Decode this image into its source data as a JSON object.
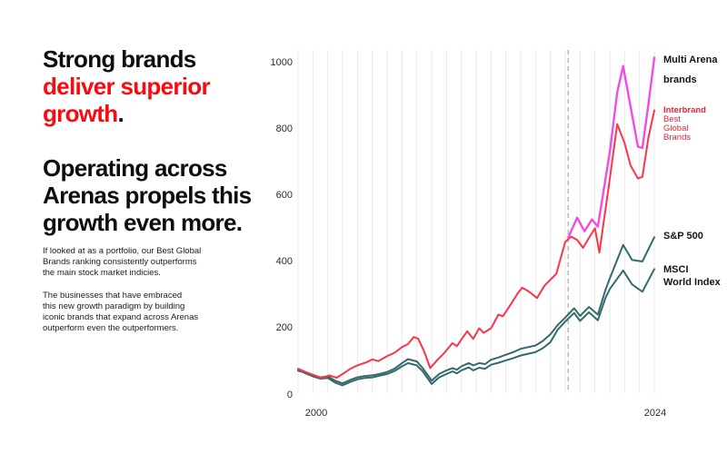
{
  "headline": {
    "line1": "Strong brands",
    "line2": "deliver superior",
    "line3_red": "growth",
    "line3_period": ".",
    "block2": "Operating across\nArenas propels this\ngrowth even more."
  },
  "body": {
    "para1": "If looked at as a portfolio, our Best Global\nBrands ranking consistently outperforms\nthe main stock market indicies.",
    "para2": "The businesses that have embraced\nthis new growth paradigm by building\niconic brands that expand across Arenas\noutperform even the outperformers."
  },
  "colors": {
    "accent_red": "#fa0a0f",
    "line_red": "#fb3448",
    "line_magenta": "#ee4ee2",
    "line_teal": "#34696e",
    "grid": "#e9e9e9",
    "dashed": "#b9b9b9"
  },
  "chart_data": {
    "type": "line",
    "x_axis": {
      "ticks": [
        "2000",
        "2024"
      ],
      "range": [
        2000,
        2024
      ],
      "gridlines": "vertical-yearly"
    },
    "y_axis": {
      "ticks": [
        "0",
        "200",
        "400",
        "600",
        "800",
        "1000"
      ],
      "tick_values": [
        0,
        200,
        400,
        600,
        800,
        1000
      ],
      "range": [
        0,
        1050
      ]
    },
    "dashed_marker_year": 2018.2,
    "legend": {
      "multi_arena": "Multi Arena\nbrands",
      "interbrand_bold": "Interbrand",
      "interbrand_rest": "Best\nGlobal\nBrands",
      "sp500": "S&P 500",
      "msci": "MSCI\nWorld Index"
    },
    "series": [
      {
        "name": "MSCI World Index",
        "color": "#34696e",
        "width": 2,
        "points": [
          [
            2000,
            76
          ],
          [
            2000.5,
            64
          ],
          [
            2001,
            55
          ],
          [
            2001.5,
            48
          ],
          [
            2002,
            50
          ],
          [
            2002.5,
            36
          ],
          [
            2003,
            28
          ],
          [
            2003.5,
            38
          ],
          [
            2004,
            46
          ],
          [
            2004.5,
            50
          ],
          [
            2005,
            52
          ],
          [
            2005.5,
            57
          ],
          [
            2006,
            62
          ],
          [
            2006.5,
            71
          ],
          [
            2007,
            85
          ],
          [
            2007.4,
            95
          ],
          [
            2008,
            88
          ],
          [
            2008.4,
            70
          ],
          [
            2009,
            32
          ],
          [
            2009.5,
            52
          ],
          [
            2010,
            62
          ],
          [
            2010.4,
            70
          ],
          [
            2010.7,
            64
          ],
          [
            2011,
            73
          ],
          [
            2011.5,
            82
          ],
          [
            2011.8,
            73
          ],
          [
            2012.2,
            81
          ],
          [
            2012.6,
            78
          ],
          [
            2013,
            90
          ],
          [
            2013.5,
            96
          ],
          [
            2014,
            103
          ],
          [
            2014.5,
            110
          ],
          [
            2015,
            118
          ],
          [
            2015.5,
            123
          ],
          [
            2016,
            128
          ],
          [
            2016.5,
            140
          ],
          [
            2017,
            158
          ],
          [
            2017.5,
            196
          ],
          [
            2018,
            220
          ],
          [
            2018.6,
            246
          ],
          [
            2019,
            222
          ],
          [
            2019.6,
            248
          ],
          [
            2020.2,
            224
          ],
          [
            2020.7,
            290
          ],
          [
            2021,
            318
          ],
          [
            2021.9,
            374
          ],
          [
            2022.5,
            332
          ],
          [
            2023.2,
            310
          ],
          [
            2024,
            378
          ]
        ]
      },
      {
        "name": "S&P 500",
        "color": "#34696e",
        "width": 2,
        "points": [
          [
            2000,
            72
          ],
          [
            2000.5,
            66
          ],
          [
            2001,
            58
          ],
          [
            2001.5,
            52
          ],
          [
            2002,
            55
          ],
          [
            2002.5,
            42
          ],
          [
            2003,
            34
          ],
          [
            2003.5,
            44
          ],
          [
            2004,
            52
          ],
          [
            2004.5,
            56
          ],
          [
            2005,
            58
          ],
          [
            2005.5,
            62
          ],
          [
            2006,
            68
          ],
          [
            2006.5,
            78
          ],
          [
            2007,
            95
          ],
          [
            2007.4,
            107
          ],
          [
            2008,
            100
          ],
          [
            2008.4,
            80
          ],
          [
            2009,
            42
          ],
          [
            2009.5,
            62
          ],
          [
            2010,
            73
          ],
          [
            2010.4,
            80
          ],
          [
            2010.7,
            75
          ],
          [
            2011,
            85
          ],
          [
            2011.5,
            95
          ],
          [
            2011.8,
            88
          ],
          [
            2012.2,
            95
          ],
          [
            2012.6,
            92
          ],
          [
            2013,
            105
          ],
          [
            2013.5,
            112
          ],
          [
            2014,
            120
          ],
          [
            2014.5,
            128
          ],
          [
            2015,
            138
          ],
          [
            2015.5,
            143
          ],
          [
            2016,
            148
          ],
          [
            2016.5,
            162
          ],
          [
            2017,
            182
          ],
          [
            2017.5,
            210
          ],
          [
            2018,
            232
          ],
          [
            2018.6,
            260
          ],
          [
            2019,
            237
          ],
          [
            2019.6,
            264
          ],
          [
            2020.2,
            241
          ],
          [
            2020.7,
            314
          ],
          [
            2021,
            350
          ],
          [
            2021.9,
            451
          ],
          [
            2022.5,
            406
          ],
          [
            2023.2,
            401
          ],
          [
            2024,
            474
          ]
        ]
      },
      {
        "name": "Interbrand Best Global Brands",
        "color": "#fb3448",
        "width": 2,
        "points": [
          [
            2000,
            78
          ],
          [
            2000.5,
            68
          ],
          [
            2001,
            60
          ],
          [
            2001.6,
            50
          ],
          [
            2002.1,
            58
          ],
          [
            2002.6,
            51
          ],
          [
            2003,
            62
          ],
          [
            2003.5,
            77
          ],
          [
            2004,
            88
          ],
          [
            2004.6,
            97
          ],
          [
            2005,
            106
          ],
          [
            2005.4,
            101
          ],
          [
            2006,
            116
          ],
          [
            2006.5,
            126
          ],
          [
            2007,
            143
          ],
          [
            2007.4,
            152
          ],
          [
            2007.8,
            174
          ],
          [
            2008.1,
            168
          ],
          [
            2008.5,
            130
          ],
          [
            2008.9,
            80
          ],
          [
            2009.4,
            105
          ],
          [
            2009.8,
            123
          ],
          [
            2010.4,
            155
          ],
          [
            2010.7,
            146
          ],
          [
            2011,
            166
          ],
          [
            2011.4,
            191
          ],
          [
            2011.8,
            168
          ],
          [
            2012.2,
            200
          ],
          [
            2012.5,
            186
          ],
          [
            2013,
            200
          ],
          [
            2013.5,
            241
          ],
          [
            2013.8,
            236
          ],
          [
            2014.3,
            270
          ],
          [
            2014.8,
            305
          ],
          [
            2015.1,
            322
          ],
          [
            2015.5,
            312
          ],
          [
            2016.1,
            291
          ],
          [
            2016.6,
            328
          ],
          [
            2017.4,
            364
          ],
          [
            2018,
            460
          ],
          [
            2018.4,
            476
          ],
          [
            2018.8,
            466
          ],
          [
            2019.2,
            442
          ],
          [
            2019.6,
            472
          ],
          [
            2020,
            501
          ],
          [
            2020.3,
            428
          ],
          [
            2021,
            650
          ],
          [
            2021.5,
            815
          ],
          [
            2022,
            758
          ],
          [
            2022.4,
            690
          ],
          [
            2022.9,
            651
          ],
          [
            2023.2,
            656
          ],
          [
            2023.6,
            774
          ],
          [
            2024,
            856
          ]
        ]
      },
      {
        "name": "Multi Arena brands",
        "color": "#ee4ee2",
        "width": 2.4,
        "points": [
          [
            2018.2,
            473
          ],
          [
            2018.8,
            533
          ],
          [
            2019.3,
            492
          ],
          [
            2019.8,
            528
          ],
          [
            2020.2,
            506
          ],
          [
            2021,
            730
          ],
          [
            2021.5,
            910
          ],
          [
            2021.9,
            990
          ],
          [
            2022.3,
            893
          ],
          [
            2022.9,
            747
          ],
          [
            2023.2,
            743
          ],
          [
            2023.6,
            874
          ],
          [
            2024,
            1015
          ]
        ]
      }
    ]
  }
}
